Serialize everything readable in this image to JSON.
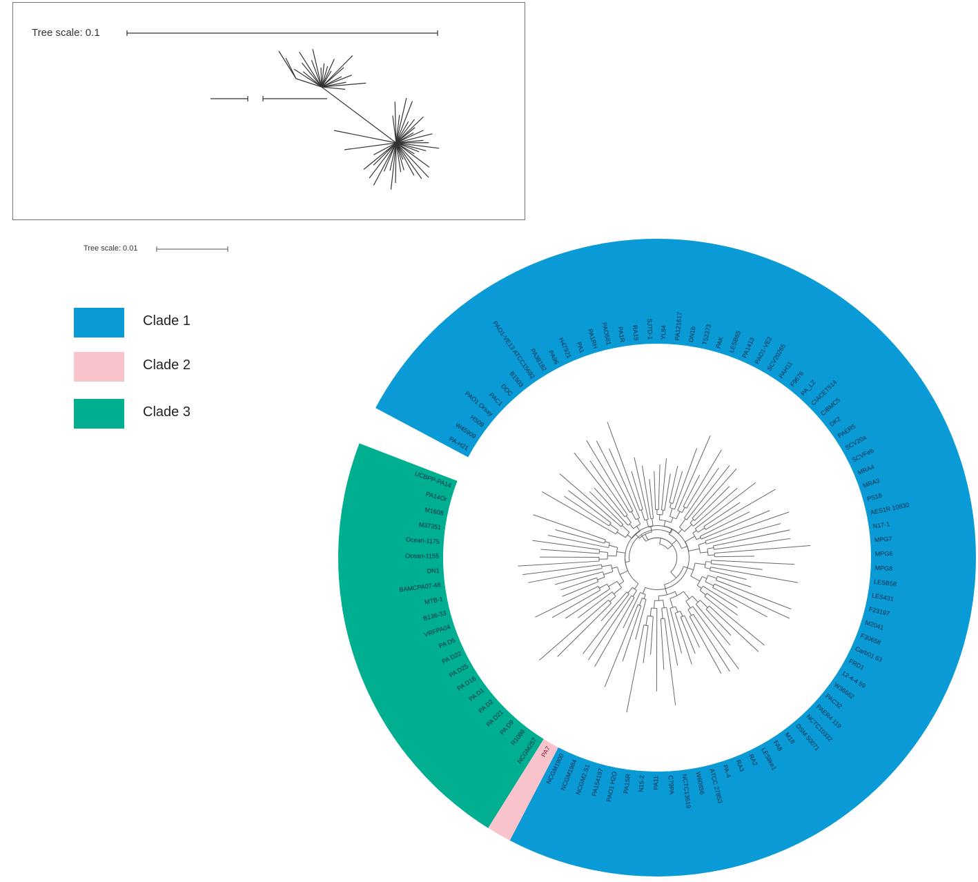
{
  "inset": {
    "scale_label": "Tree scale: 0.1"
  },
  "main_scale_label": "Tree scale: 0.01",
  "legend": [
    {
      "label": "Clade 1",
      "color": "#0A9BD6"
    },
    {
      "label": "Clade 2",
      "color": "#F9C3CC"
    },
    {
      "label": "Clade 3",
      "color": "#00AE90"
    }
  ],
  "clades": [
    {
      "name": "Clade 1",
      "color": "#0A9BD6",
      "leaves": [
        "PA-H21",
        "W45909",
        "HS09",
        "PAO1 Orsay",
        "PAC1",
        "DOC",
        "B1503",
        "PAO1-VE13 ATCC15692",
        "PA38182",
        "PA96",
        "H47921",
        "PA1",
        "PA1RH",
        "PAO581",
        "PA1R",
        "RA19",
        "SJTD-1",
        "YL84",
        "PA121617",
        "DN1b",
        "T52373",
        "PAK",
        "LESB65",
        "PA1413",
        "PAO1-VE2",
        "SCV20265",
        "PAH11",
        "F9676",
        "PA_LZ",
        "CIACET514",
        "CIBMC5",
        "DK2",
        "PAER5",
        "SCV20a",
        "SCVFeb",
        "MRA4",
        "MRA3",
        "PS18",
        "AES1R 10830",
        "N17-1",
        "MPG7",
        "MPG6",
        "MPG8",
        "LESB58",
        "LES431",
        "F23197",
        "M2041",
        "F30658",
        "Carb01 63",
        "FRD1",
        "12-4-4 59",
        "W36662",
        "PAC32",
        "PAER4 119",
        "NCTC10332",
        "DSM 50071",
        "M18",
        "FA8",
        "LESlike1",
        "RA2",
        "RA3",
        "PA-4",
        "ATCC 27853",
        "W60856",
        "NCTC13619",
        "C79PA",
        "PA11",
        "N15-2",
        "PA1SR",
        "PAO1 H2O",
        "PA154197",
        "NCGM2.S1",
        "NCGM1984",
        "NCGM1900"
      ]
    },
    {
      "name": "Clade 2",
      "color": "#F9C3CC",
      "leaves": [
        "PA7"
      ]
    },
    {
      "name": "Clade 3",
      "color": "#00AE90",
      "leaves": [
        "NCGM257",
        "R1086",
        "PA D9",
        "PA D21",
        "PA D2",
        "PA D1",
        "PA D16",
        "PA D25",
        "PA D22",
        "PA D5",
        "VRFPA04",
        "B136-33",
        "MTB-1",
        "BAMCPA07-48",
        "DN1",
        "Ocean-1155",
        "Ocean-1175",
        "M37351",
        "M1608",
        "PA14Or",
        "UCBPP-PA14"
      ]
    }
  ]
}
